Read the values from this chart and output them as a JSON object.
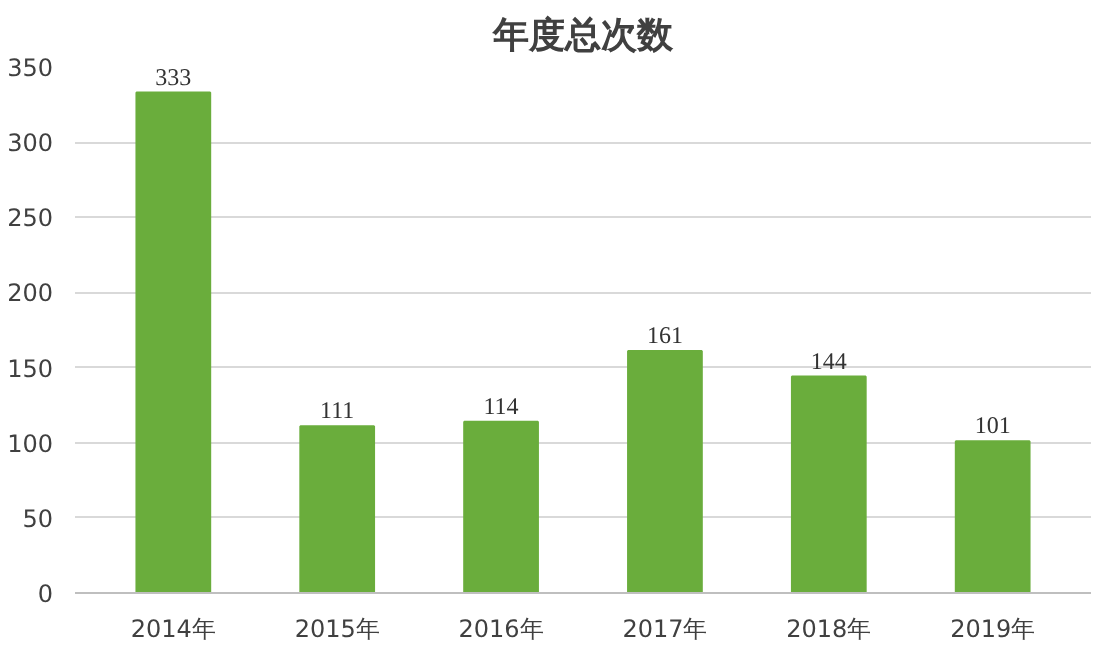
{
  "chart_data": {
    "type": "bar",
    "title": "年度总次数",
    "categories": [
      "2014年",
      "2015年",
      "2016年",
      "2017年",
      "2018年",
      "2019年"
    ],
    "values": [
      333,
      111,
      114,
      161,
      144,
      101
    ],
    "color": "#6aad3c",
    "data_labels": true,
    "grid": "y",
    "ylim": [
      0,
      350
    ],
    "yticks": [
      0,
      50,
      100,
      150,
      200,
      250,
      300,
      350
    ]
  }
}
